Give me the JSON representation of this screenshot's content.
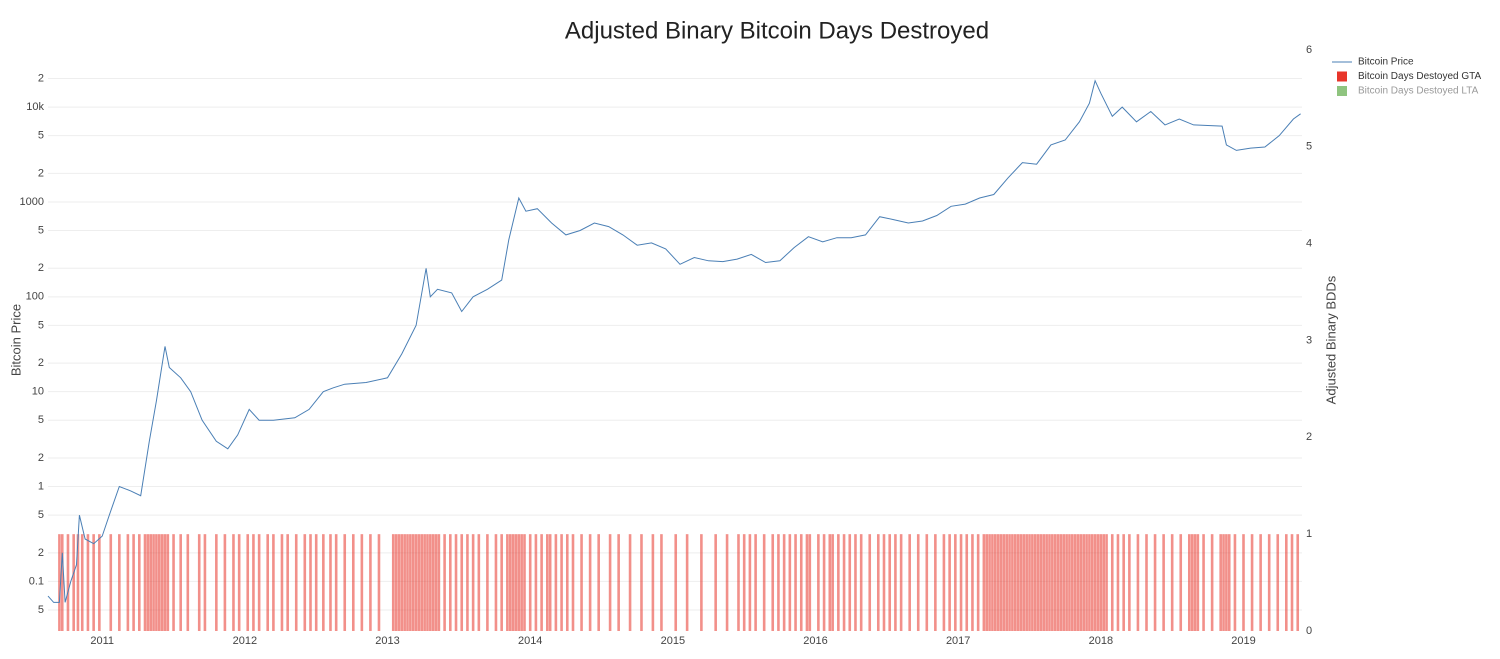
{
  "chart_data": {
    "type": "combo",
    "title": "Adjusted Binary Bitcoin Days Destroyed",
    "y_label": "Bitcoin Price",
    "y2_label": "Adjusted Binary BDDs",
    "ylog": true,
    "grid": true,
    "legend": "top-right",
    "xlim": [
      2010.62,
      2019.41
    ],
    "xticks": [
      2011,
      2012,
      2013,
      2014,
      2015,
      2016,
      2017,
      2018,
      2019
    ],
    "ylim": [
      0.03,
      40000
    ],
    "yticks": [
      {
        "value": 0.05,
        "label": "5"
      },
      0.1,
      {
        "value": 0.2,
        "label": "2"
      },
      {
        "value": 0.5,
        "label": "5"
      },
      1,
      2,
      5,
      10,
      {
        "value": 20,
        "label": "2"
      },
      {
        "value": 50,
        "label": "5"
      },
      100,
      {
        "value": 200,
        "label": "2"
      },
      {
        "value": 500,
        "label": "5"
      },
      1000,
      {
        "value": 2000,
        "label": "2"
      },
      {
        "value": 5000,
        "label": "5"
      },
      {
        "value": 10000,
        "label": "10k"
      },
      {
        "value": 20000,
        "label": "2"
      }
    ],
    "y2lim": [
      0,
      6
    ],
    "y2ticks": [
      0,
      1,
      2,
      3,
      4,
      5,
      6
    ],
    "series": [
      {
        "name": "Bitcoin Price",
        "type": "line",
        "color": "#4a7fb5",
        "x": [
          2010.62,
          2010.66,
          2010.7,
          2010.72,
          2010.74,
          2010.78,
          2010.82,
          2010.84,
          2010.88,
          2010.94,
          2011.0,
          2011.05,
          2011.12,
          2011.2,
          2011.27,
          2011.33,
          2011.38,
          2011.44,
          2011.47,
          2011.55,
          2011.62,
          2011.7,
          2011.8,
          2011.88,
          2011.95,
          2012.03,
          2012.1,
          2012.2,
          2012.35,
          2012.45,
          2012.55,
          2012.62,
          2012.7,
          2012.85,
          2013.0,
          2013.1,
          2013.2,
          2013.27,
          2013.3,
          2013.35,
          2013.45,
          2013.52,
          2013.6,
          2013.7,
          2013.8,
          2013.85,
          2013.92,
          2013.97,
          2014.05,
          2014.15,
          2014.25,
          2014.35,
          2014.45,
          2014.55,
          2014.65,
          2014.75,
          2014.85,
          2014.95,
          2015.05,
          2015.15,
          2015.25,
          2015.35,
          2015.45,
          2015.55,
          2015.65,
          2015.75,
          2015.85,
          2015.95,
          2016.05,
          2016.15,
          2016.25,
          2016.35,
          2016.45,
          2016.55,
          2016.65,
          2016.75,
          2016.85,
          2016.95,
          2017.05,
          2017.15,
          2017.25,
          2017.35,
          2017.45,
          2017.55,
          2017.65,
          2017.75,
          2017.85,
          2017.92,
          2017.96,
          2018.0,
          2018.08,
          2018.15,
          2018.25,
          2018.35,
          2018.45,
          2018.55,
          2018.65,
          2018.75,
          2018.85,
          2018.88,
          2018.95,
          2019.05,
          2019.15,
          2019.25,
          2019.35,
          2019.4
        ],
        "values": [
          0.07,
          0.06,
          0.06,
          0.2,
          0.06,
          0.1,
          0.15,
          0.5,
          0.28,
          0.25,
          0.3,
          0.5,
          1,
          0.9,
          0.8,
          3,
          8,
          30,
          18,
          14,
          10,
          5,
          3,
          2.5,
          3.5,
          6.5,
          5,
          5,
          5.3,
          6.5,
          10,
          11,
          12,
          12.5,
          14,
          25,
          50,
          200,
          100,
          120,
          110,
          70,
          100,
          120,
          150,
          400,
          1100,
          800,
          850,
          600,
          450,
          500,
          600,
          550,
          450,
          350,
          370,
          320,
          220,
          260,
          240,
          235,
          250,
          280,
          230,
          240,
          330,
          430,
          380,
          420,
          420,
          450,
          700,
          650,
          600,
          630,
          720,
          900,
          950,
          1100,
          1200,
          1800,
          2600,
          2500,
          4000,
          4500,
          7000,
          11000,
          19000,
          14000,
          8000,
          10000,
          7000,
          9000,
          6500,
          7500,
          6500,
          6400,
          6300,
          4000,
          3500,
          3700,
          3800,
          5000,
          7500,
          8500
        ]
      },
      {
        "name": "Bitcoin Days Destoyed GTA",
        "type": "bar",
        "axis": "y2",
        "color": "#e8352a",
        "x": [
          2010.7,
          2010.72,
          2010.76,
          2010.8,
          2010.83,
          2010.86,
          2010.9,
          2010.94,
          2010.98,
          2011.06,
          2011.12,
          2011.18,
          2011.22,
          2011.26,
          2011.3,
          2011.32,
          2011.34,
          2011.36,
          2011.38,
          2011.4,
          2011.42,
          2011.44,
          2011.46,
          2011.5,
          2011.55,
          2011.6,
          2011.68,
          2011.72,
          2011.8,
          2011.86,
          2011.92,
          2011.96,
          2012.02,
          2012.06,
          2012.1,
          2012.16,
          2012.2,
          2012.26,
          2012.3,
          2012.36,
          2012.42,
          2012.46,
          2012.5,
          2012.55,
          2012.6,
          2012.64,
          2012.7,
          2012.76,
          2012.82,
          2012.88,
          2012.94,
          2013.04,
          2013.06,
          2013.08,
          2013.1,
          2013.12,
          2013.14,
          2013.16,
          2013.18,
          2013.2,
          2013.22,
          2013.24,
          2013.26,
          2013.28,
          2013.3,
          2013.32,
          2013.34,
          2013.36,
          2013.4,
          2013.44,
          2013.48,
          2013.52,
          2013.56,
          2013.6,
          2013.64,
          2013.7,
          2013.76,
          2013.8,
          2013.84,
          2013.86,
          2013.88,
          2013.9,
          2013.92,
          2013.94,
          2013.96,
          2014.0,
          2014.04,
          2014.08,
          2014.12,
          2014.14,
          2014.18,
          2014.22,
          2014.26,
          2014.3,
          2014.36,
          2014.42,
          2014.48,
          2014.56,
          2014.62,
          2014.7,
          2014.78,
          2014.86,
          2014.92,
          2015.02,
          2015.1,
          2015.2,
          2015.3,
          2015.38,
          2015.46,
          2015.5,
          2015.54,
          2015.58,
          2015.64,
          2015.7,
          2015.74,
          2015.78,
          2015.82,
          2015.86,
          2015.9,
          2015.94,
          2015.96,
          2016.02,
          2016.06,
          2016.1,
          2016.12,
          2016.16,
          2016.2,
          2016.24,
          2016.28,
          2016.32,
          2016.38,
          2016.44,
          2016.48,
          2016.52,
          2016.56,
          2016.6,
          2016.66,
          2016.72,
          2016.78,
          2016.84,
          2016.9,
          2016.94,
          2016.98,
          2017.02,
          2017.06,
          2017.1,
          2017.14,
          2017.18,
          2017.2,
          2017.22,
          2017.24,
          2017.26,
          2017.28,
          2017.3,
          2017.32,
          2017.34,
          2017.36,
          2017.38,
          2017.4,
          2017.42,
          2017.44,
          2017.46,
          2017.48,
          2017.5,
          2017.52,
          2017.54,
          2017.56,
          2017.58,
          2017.6,
          2017.62,
          2017.64,
          2017.66,
          2017.68,
          2017.7,
          2017.72,
          2017.74,
          2017.76,
          2017.78,
          2017.8,
          2017.82,
          2017.84,
          2017.86,
          2017.88,
          2017.9,
          2017.92,
          2017.94,
          2017.96,
          2017.98,
          2018.0,
          2018.02,
          2018.04,
          2018.08,
          2018.12,
          2018.16,
          2018.2,
          2018.26,
          2018.32,
          2018.38,
          2018.44,
          2018.5,
          2018.56,
          2018.62,
          2018.64,
          2018.66,
          2018.68,
          2018.72,
          2018.78,
          2018.84,
          2018.86,
          2018.88,
          2018.9,
          2018.94,
          2019.0,
          2019.06,
          2019.12,
          2019.18,
          2019.24,
          2019.3,
          2019.34,
          2019.38
        ],
        "values": [
          1,
          1,
          1,
          1,
          1,
          1,
          1,
          1,
          1,
          1,
          1,
          1,
          1,
          1,
          1,
          1,
          1,
          1,
          1,
          1,
          1,
          1,
          1,
          1,
          1,
          1,
          1,
          1,
          1,
          1,
          1,
          1,
          1,
          1,
          1,
          1,
          1,
          1,
          1,
          1,
          1,
          1,
          1,
          1,
          1,
          1,
          1,
          1,
          1,
          1,
          1,
          1,
          1,
          1,
          1,
          1,
          1,
          1,
          1,
          1,
          1,
          1,
          1,
          1,
          1,
          1,
          1,
          1,
          1,
          1,
          1,
          1,
          1,
          1,
          1,
          1,
          1,
          1,
          1,
          1,
          1,
          1,
          1,
          1,
          1,
          1,
          1,
          1,
          1,
          1,
          1,
          1,
          1,
          1,
          1,
          1,
          1,
          1,
          1,
          1,
          1,
          1,
          1,
          1,
          1,
          1,
          1,
          1,
          1,
          1,
          1,
          1,
          1,
          1,
          1,
          1,
          1,
          1,
          1,
          1,
          1,
          1,
          1,
          1,
          1,
          1,
          1,
          1,
          1,
          1,
          1,
          1,
          1,
          1,
          1,
          1,
          1,
          1,
          1,
          1,
          1,
          1,
          1,
          1,
          1,
          1,
          1,
          1,
          1,
          1,
          1,
          1,
          1,
          1,
          1,
          1,
          1,
          1,
          1,
          1,
          1,
          1,
          1,
          1,
          1,
          1,
          1,
          1,
          1,
          1,
          1,
          1,
          1,
          1,
          1,
          1,
          1,
          1,
          1,
          1,
          1,
          1,
          1,
          1,
          1,
          1,
          1,
          1,
          1,
          1,
          1,
          1,
          1,
          1,
          1,
          1,
          1,
          1,
          1,
          1,
          1,
          1,
          1,
          1,
          1,
          1,
          1,
          1,
          1,
          1,
          1,
          1,
          1,
          1,
          1,
          1,
          1,
          1,
          1,
          1
        ]
      },
      {
        "name": "Bitcoin Days Destoyed LTA",
        "type": "bar",
        "axis": "y2",
        "color": "#8fc47f",
        "x": [],
        "values": []
      }
    ]
  }
}
